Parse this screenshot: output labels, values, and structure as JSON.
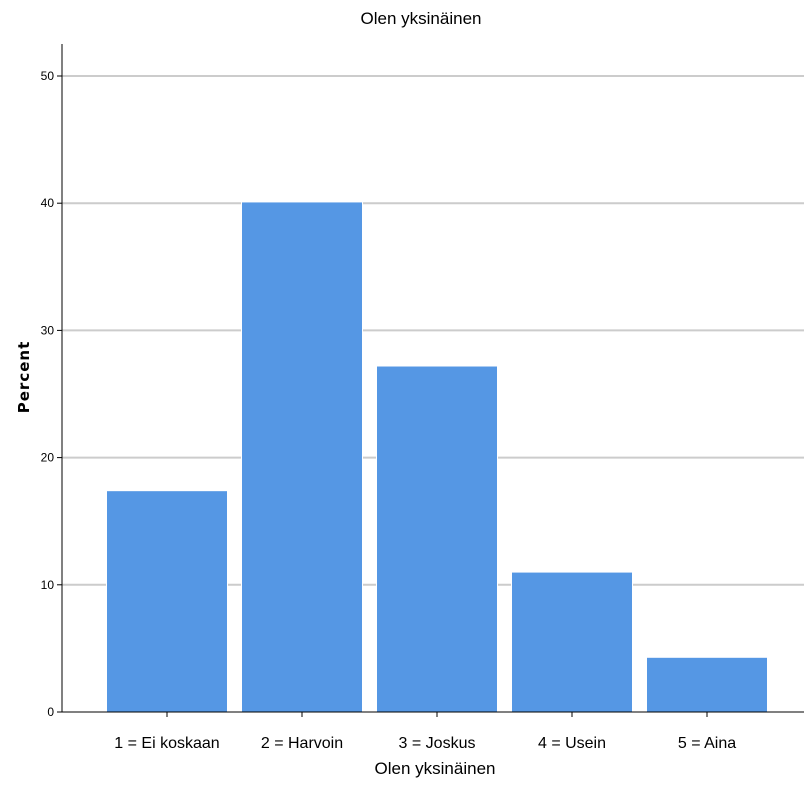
{
  "chart_data": {
    "type": "bar",
    "title": "Olen yksinäinen",
    "xlabel": "Olen yksinäinen",
    "ylabel": "Percent",
    "categories": [
      "1 = Ei koskaan",
      "2 = Harvoin",
      "3 = Joskus",
      "4 = Usein",
      "5 = Aina"
    ],
    "values": [
      17.4,
      40.1,
      27.2,
      11.0,
      4.3
    ],
    "ylim": [
      0,
      50
    ],
    "yticks": [
      0,
      10,
      20,
      30,
      40,
      50
    ],
    "grid": true,
    "bar_color": "#5597e4",
    "grid_color": "#cccccc"
  }
}
